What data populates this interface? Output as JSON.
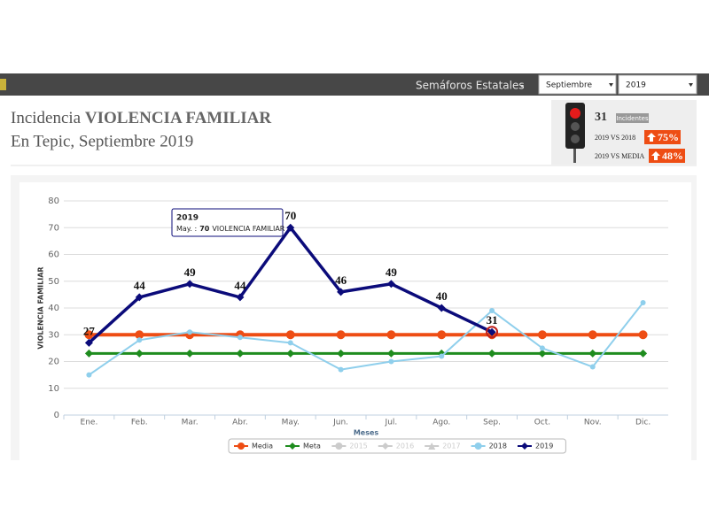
{
  "navbar": {
    "menu": "Semáforos Estatales",
    "month_select": "Septiembre",
    "year_select": "2019"
  },
  "header": {
    "title_prefix": "Incidencia",
    "title_subject": "VIOLENCIA FAMILIAR",
    "subtitle": "En Tepic, Septiembre 2019"
  },
  "stats": {
    "count": 31,
    "count_label": "Incidentes",
    "rows": [
      {
        "label": "2019 VS 2018",
        "value": 75,
        "value_label": "75%"
      },
      {
        "label": "2019 VS MEDIA",
        "value": 48,
        "value_label": "48%"
      }
    ]
  },
  "chart_data": {
    "type": "line",
    "ylabel": "VIOLENCIA FAMILIAR",
    "xlabel": "Meses",
    "categories": [
      "Ene.",
      "Feb.",
      "Mar.",
      "Abr.",
      "May.",
      "Jun.",
      "Jul.",
      "Ago.",
      "Sep.",
      "Oct.",
      "Nov.",
      "Dic."
    ],
    "ylim": [
      0,
      80
    ],
    "yticks": [
      0,
      10,
      20,
      30,
      40,
      50,
      60,
      70,
      80
    ],
    "grid": true,
    "legend": "bottom",
    "series": [
      {
        "name": "Media",
        "color": "#ee4d14",
        "marker": "circle",
        "visible": true,
        "values": [
          30,
          30,
          30,
          30,
          30,
          30,
          30,
          30,
          30,
          30,
          30,
          30
        ]
      },
      {
        "name": "Meta",
        "color": "#1e8c1e",
        "marker": "diamond",
        "visible": true,
        "values": [
          23,
          23,
          23,
          23,
          23,
          23,
          23,
          23,
          23,
          23,
          23,
          23
        ]
      },
      {
        "name": "2015",
        "color": "#cccccc",
        "marker": "circle",
        "visible": false,
        "values": [
          null,
          null,
          null,
          null,
          null,
          null,
          null,
          null,
          null,
          null,
          null,
          null
        ]
      },
      {
        "name": "2016",
        "color": "#cccccc",
        "marker": "diamond",
        "visible": false,
        "values": [
          null,
          null,
          null,
          null,
          null,
          null,
          null,
          null,
          null,
          null,
          null,
          null
        ]
      },
      {
        "name": "2017",
        "color": "#cccccc",
        "marker": "triangle",
        "visible": false,
        "values": [
          null,
          null,
          null,
          null,
          null,
          null,
          null,
          null,
          null,
          null,
          null,
          null
        ]
      },
      {
        "name": "2018",
        "color": "#8fcfec",
        "marker": "circle",
        "visible": true,
        "values": [
          15,
          28,
          31,
          29,
          27,
          17,
          20,
          22,
          39,
          25,
          18,
          42
        ]
      },
      {
        "name": "2019",
        "color": "#0b0b7a",
        "marker": "diamond",
        "visible": true,
        "data_labels": true,
        "values": [
          27,
          44,
          49,
          44,
          70,
          46,
          49,
          40,
          31,
          null,
          null,
          null
        ]
      }
    ],
    "tooltip": {
      "title": "2019",
      "prefix": "May. :",
      "value": 70,
      "suffix": "VIOLENCIA FAMILIAR"
    }
  }
}
